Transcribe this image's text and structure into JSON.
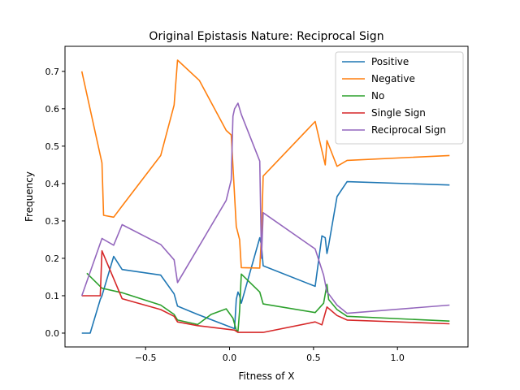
{
  "chart_data": {
    "type": "line",
    "title": "Original Epistasis Nature: Reciprocal Sign",
    "xlabel": "Fitness of X",
    "ylabel": "Frequency",
    "xlim": [
      -0.98,
      1.42
    ],
    "ylim": [
      -0.037,
      0.767
    ],
    "x_ticks": [
      -0.5,
      0.0,
      0.5,
      1.0
    ],
    "x_tick_labels": [
      "−0.5",
      "0.0",
      "0.5",
      "1.0"
    ],
    "y_ticks": [
      0.0,
      0.1,
      0.2,
      0.3,
      0.4,
      0.5,
      0.6,
      0.7
    ],
    "y_tick_labels": [
      "0.0",
      "0.1",
      "0.2",
      "0.3",
      "0.4",
      "0.5",
      "0.6",
      "0.7"
    ],
    "grid": false,
    "legend_position": "top-right",
    "series": [
      {
        "name": "Positive",
        "color": "#1f77b4",
        "points": [
          [
            -0.88,
            0.0
          ],
          [
            -0.83,
            0.0
          ],
          [
            -0.77,
            0.09
          ],
          [
            -0.76,
            0.1
          ],
          [
            -0.69,
            0.205
          ],
          [
            -0.64,
            0.17
          ],
          [
            -0.41,
            0.155
          ],
          [
            -0.33,
            0.105
          ],
          [
            -0.31,
            0.072
          ],
          [
            -0.19,
            0.05
          ],
          [
            0.03,
            0.012
          ],
          [
            0.04,
            0.09
          ],
          [
            0.05,
            0.11
          ],
          [
            0.06,
            0.1
          ],
          [
            0.07,
            0.08
          ],
          [
            0.18,
            0.255
          ],
          [
            0.19,
            0.235
          ],
          [
            0.2,
            0.18
          ],
          [
            0.51,
            0.125
          ],
          [
            0.55,
            0.26
          ],
          [
            0.57,
            0.255
          ],
          [
            0.58,
            0.213
          ],
          [
            0.59,
            0.235
          ],
          [
            0.64,
            0.365
          ],
          [
            0.7,
            0.405
          ],
          [
            1.31,
            0.396
          ]
        ]
      },
      {
        "name": "Negative",
        "color": "#ff7f0e",
        "points": [
          [
            -0.88,
            0.7
          ],
          [
            -0.76,
            0.455
          ],
          [
            -0.75,
            0.315
          ],
          [
            -0.69,
            0.31
          ],
          [
            -0.64,
            0.34
          ],
          [
            -0.41,
            0.475
          ],
          [
            -0.33,
            0.61
          ],
          [
            -0.31,
            0.73
          ],
          [
            -0.18,
            0.676
          ],
          [
            -0.02,
            0.542
          ],
          [
            0.01,
            0.53
          ],
          [
            0.04,
            0.285
          ],
          [
            0.06,
            0.25
          ],
          [
            0.07,
            0.175
          ],
          [
            0.18,
            0.174
          ],
          [
            0.19,
            0.26
          ],
          [
            0.2,
            0.42
          ],
          [
            0.51,
            0.566
          ],
          [
            0.57,
            0.45
          ],
          [
            0.58,
            0.515
          ],
          [
            0.64,
            0.446
          ],
          [
            0.7,
            0.462
          ],
          [
            1.31,
            0.475
          ]
        ]
      },
      {
        "name": "No",
        "color": "#2ca02c",
        "points": [
          [
            -0.85,
            0.16
          ],
          [
            -0.76,
            0.12
          ],
          [
            -0.64,
            0.108
          ],
          [
            -0.41,
            0.075
          ],
          [
            -0.33,
            0.05
          ],
          [
            -0.31,
            0.035
          ],
          [
            -0.19,
            0.023
          ],
          [
            -0.11,
            0.05
          ],
          [
            -0.02,
            0.065
          ],
          [
            0.02,
            0.04
          ],
          [
            0.04,
            0.008
          ],
          [
            0.05,
            0.005
          ],
          [
            0.06,
            0.06
          ],
          [
            0.07,
            0.158
          ],
          [
            0.18,
            0.11
          ],
          [
            0.2,
            0.078
          ],
          [
            0.51,
            0.055
          ],
          [
            0.56,
            0.08
          ],
          [
            0.58,
            0.13
          ],
          [
            0.59,
            0.09
          ],
          [
            0.64,
            0.063
          ],
          [
            0.7,
            0.045
          ],
          [
            1.31,
            0.032
          ]
        ]
      },
      {
        "name": "Single Sign",
        "color": "#d62728",
        "points": [
          [
            -0.88,
            0.1
          ],
          [
            -0.77,
            0.1
          ],
          [
            -0.76,
            0.22
          ],
          [
            -0.64,
            0.092
          ],
          [
            -0.41,
            0.063
          ],
          [
            -0.33,
            0.045
          ],
          [
            -0.31,
            0.03
          ],
          [
            -0.19,
            0.02
          ],
          [
            0.03,
            0.008
          ],
          [
            0.05,
            0.002
          ],
          [
            0.2,
            0.002
          ],
          [
            0.51,
            0.03
          ],
          [
            0.55,
            0.022
          ],
          [
            0.58,
            0.07
          ],
          [
            0.64,
            0.047
          ],
          [
            0.7,
            0.035
          ],
          [
            1.31,
            0.025
          ]
        ]
      },
      {
        "name": "Reciprocal Sign",
        "color": "#9467bd",
        "points": [
          [
            -0.88,
            0.1
          ],
          [
            -0.76,
            0.253
          ],
          [
            -0.69,
            0.235
          ],
          [
            -0.64,
            0.29
          ],
          [
            -0.41,
            0.237
          ],
          [
            -0.33,
            0.196
          ],
          [
            -0.31,
            0.135
          ],
          [
            -0.02,
            0.355
          ],
          [
            0.01,
            0.41
          ],
          [
            0.02,
            0.58
          ],
          [
            0.03,
            0.6
          ],
          [
            0.05,
            0.615
          ],
          [
            0.07,
            0.585
          ],
          [
            0.18,
            0.46
          ],
          [
            0.19,
            0.2
          ],
          [
            0.2,
            0.322
          ],
          [
            0.51,
            0.225
          ],
          [
            0.56,
            0.155
          ],
          [
            0.58,
            0.11
          ],
          [
            0.59,
            0.105
          ],
          [
            0.64,
            0.075
          ],
          [
            0.7,
            0.053
          ],
          [
            1.31,
            0.075
          ]
        ]
      }
    ]
  }
}
